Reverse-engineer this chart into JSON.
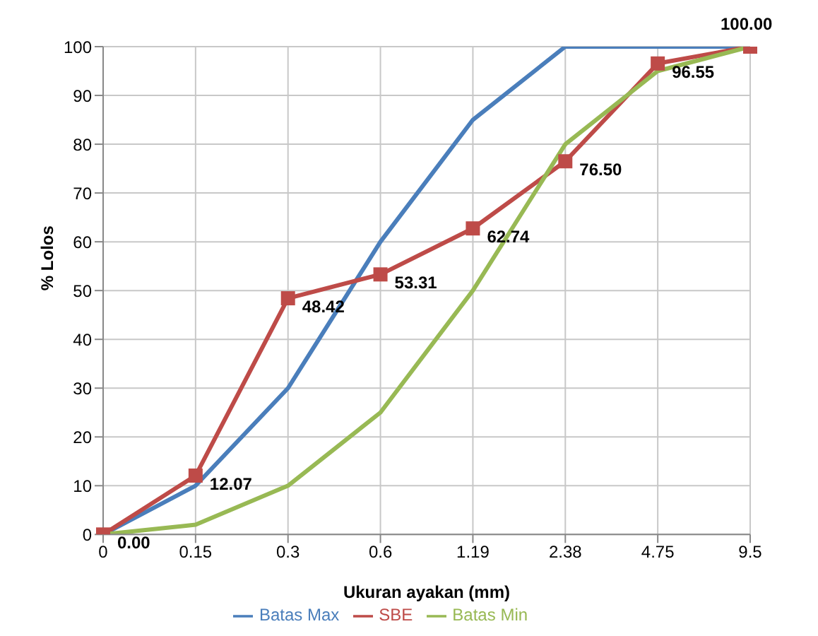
{
  "chart_data": {
    "type": "line",
    "xlabel": "Ukuran ayakan (mm)",
    "ylabel": "% Lolos",
    "categories": [
      "0",
      "0.15",
      "0.3",
      "0.6",
      "1.19",
      "2.38",
      "4.75",
      "9.5"
    ],
    "series": [
      {
        "name": "Batas Max",
        "color": "#4a7ebb",
        "marker": "none",
        "values": [
          0,
          10,
          30,
          60,
          85,
          100,
          100,
          100
        ]
      },
      {
        "name": "SBE",
        "color": "#be4b48",
        "marker": "square",
        "values": [
          0.0,
          12.07,
          48.42,
          53.31,
          62.74,
          76.5,
          96.55,
          100.0
        ],
        "value_labels": [
          "0.00",
          "12.07",
          "48.42",
          "53.31",
          "62.74",
          "76.50",
          "96.55",
          "100.00"
        ]
      },
      {
        "name": "Batas Min",
        "color": "#98b954",
        "marker": "none",
        "values": [
          0,
          2,
          10,
          25,
          50,
          80,
          95,
          100
        ]
      }
    ],
    "ylim": [
      0,
      100
    ],
    "yticks": [
      0,
      10,
      20,
      30,
      40,
      50,
      60,
      70,
      80,
      90,
      100
    ],
    "grid": true,
    "legend": "bottom",
    "line_style": "solid"
  }
}
